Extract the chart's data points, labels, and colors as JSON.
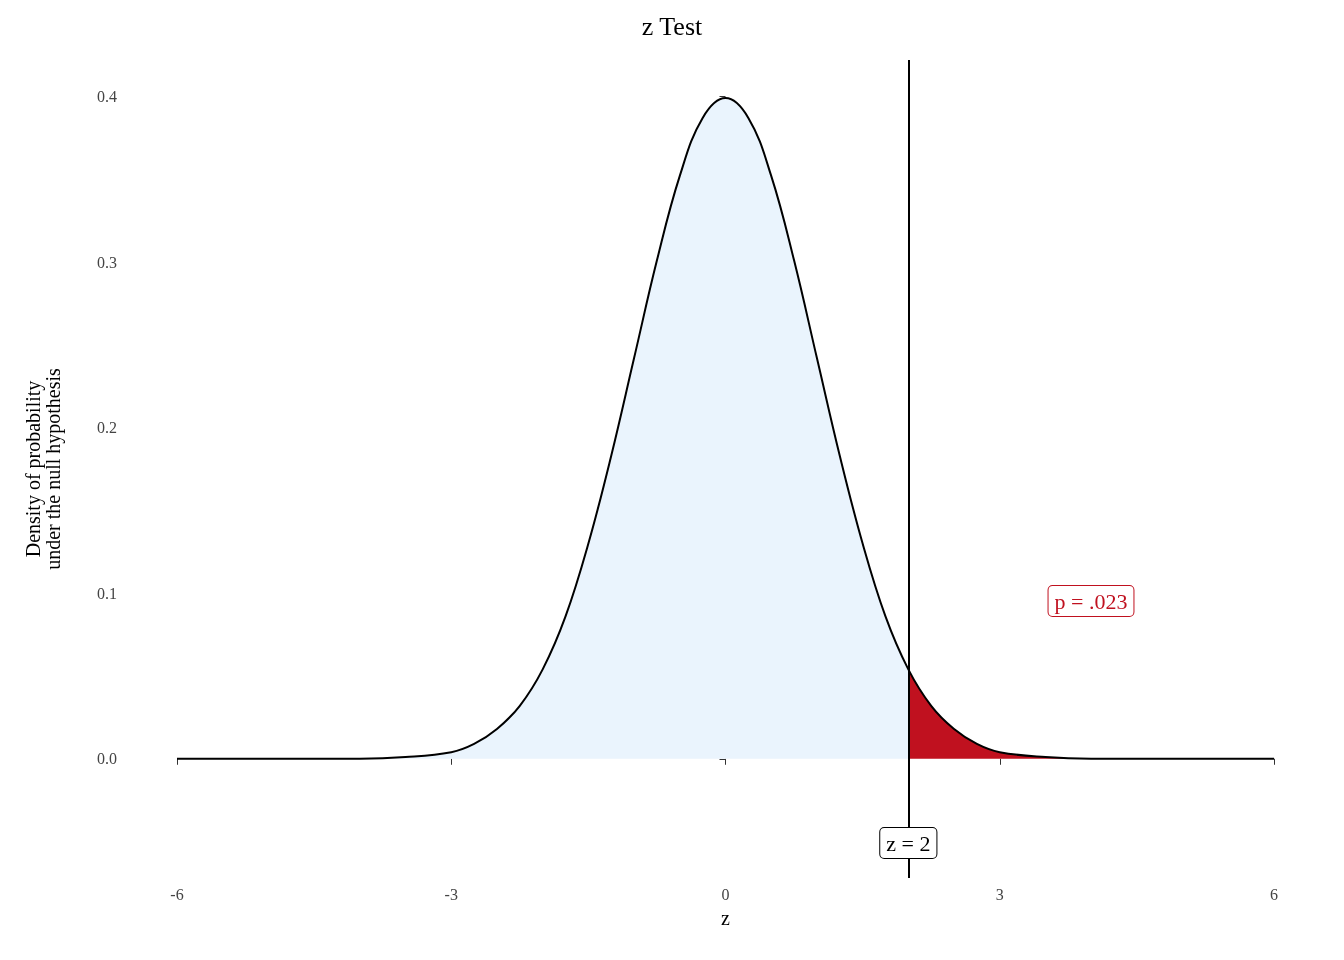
{
  "chart_data": {
    "type": "area",
    "title": "z Test",
    "xlabel": "z",
    "ylabel": "Density of probability\nunder the null hypothesis",
    "xlim": [
      -6,
      6
    ],
    "xticks": [
      -6,
      -3,
      0,
      3,
      6
    ],
    "ylim": [
      -0.072,
      0.422
    ],
    "yticks": [
      {
        "value": 0,
        "label": "0.0"
      },
      {
        "value": 0.1,
        "label": "0.1"
      },
      {
        "value": 0.2,
        "label": "0.2"
      },
      {
        "value": 0.3,
        "label": "0.3"
      },
      {
        "value": 0.4,
        "label": "0.4"
      }
    ],
    "series": [
      {
        "color": "#eaf4fd",
        "x": [
          -6,
          -5,
          -4,
          -3.5,
          -3,
          -2.75,
          -2.5,
          -2.25,
          -2,
          -1.75,
          -1.5,
          -1.25,
          -1,
          -0.75,
          -0.5,
          -0.25,
          0,
          0.25,
          0.5,
          0.75,
          1,
          1.25,
          1.5,
          1.75,
          2
        ],
        "values": [
          0,
          0,
          0,
          0.001,
          0.004,
          0.009,
          0.018,
          0.032,
          0.054,
          0.086,
          0.13,
          0.183,
          0.242,
          0.301,
          0.352,
          0.387,
          0.399,
          0.387,
          0.352,
          0.301,
          0.242,
          0.183,
          0.13,
          0.086,
          0.054
        ]
      },
      {
        "color": "#c0111f",
        "x": [
          2,
          2.25,
          2.5,
          2.75,
          3,
          3.5,
          4,
          5,
          6
        ],
        "values": [
          0.054,
          0.032,
          0.018,
          0.009,
          0.004,
          0.001,
          0,
          0,
          0
        ]
      },
      {
        "type": "line",
        "color": "#000000",
        "x": [
          -6,
          -5,
          -4,
          -3.5,
          -3,
          -2.75,
          -2.5,
          -2.25,
          -2,
          -1.75,
          -1.5,
          -1.25,
          -1,
          -0.75,
          -0.5,
          -0.25,
          0,
          0.25,
          0.5,
          0.75,
          1,
          1.25,
          1.5,
          1.75,
          2,
          2.25,
          2.5,
          2.75,
          3,
          3.5,
          4,
          5,
          6
        ],
        "values": [
          0,
          0,
          0,
          0.001,
          0.004,
          0.009,
          0.018,
          0.032,
          0.054,
          0.086,
          0.13,
          0.183,
          0.242,
          0.301,
          0.352,
          0.387,
          0.399,
          0.387,
          0.352,
          0.301,
          0.242,
          0.183,
          0.13,
          0.086,
          0.054,
          0.032,
          0.018,
          0.009,
          0.004,
          0.001,
          0,
          0,
          0
        ]
      }
    ],
    "ref_lines": [
      {
        "axis": "x",
        "value": 2,
        "label": "z = 2",
        "color": "#000000"
      }
    ],
    "annotations": [
      "p = .023"
    ]
  }
}
